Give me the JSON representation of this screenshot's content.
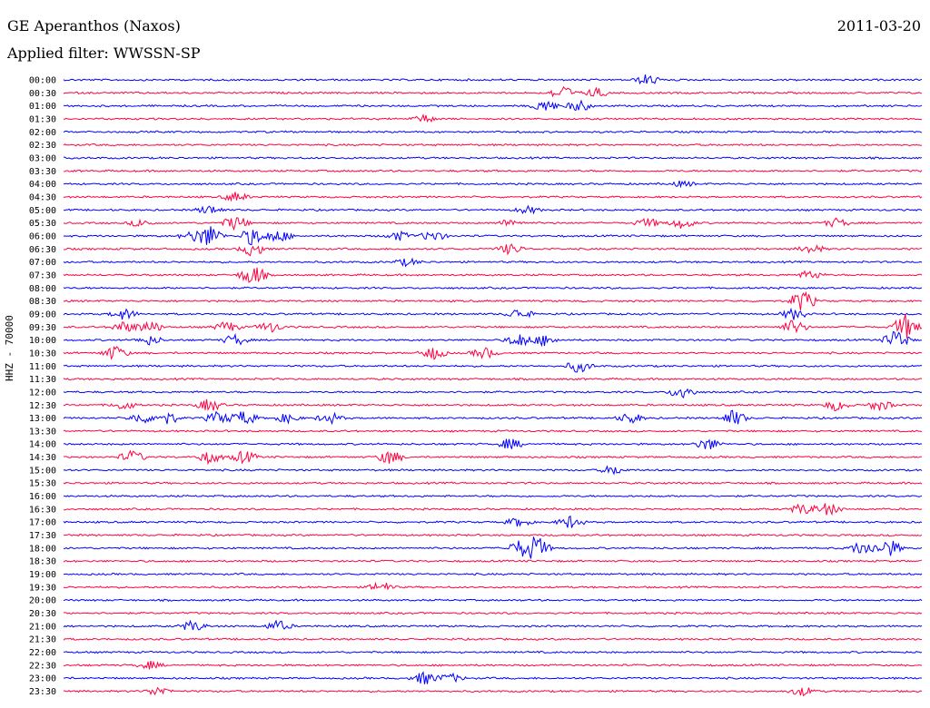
{
  "header": {
    "station": "GE Aperanthos (Naxos)",
    "filter": "Applied filter: WWSSN-SP",
    "date": "2011-03-20"
  },
  "channel_label": "HHZ - 70000",
  "colors": {
    "even": "#0000ff",
    "odd": "#ff0040"
  },
  "chart_data": {
    "type": "line",
    "title": "GE Aperanthos (Naxos)",
    "subtitle": "Applied filter: WWSSN-SP",
    "ylabel": "HHZ - 70000",
    "rows": [
      "00:00",
      "00:30",
      "01:00",
      "01:30",
      "02:00",
      "02:30",
      "03:00",
      "03:30",
      "04:00",
      "04:30",
      "05:00",
      "05:30",
      "06:00",
      "06:30",
      "07:00",
      "07:30",
      "08:00",
      "08:30",
      "09:00",
      "09:30",
      "10:00",
      "10:30",
      "11:00",
      "11:30",
      "12:00",
      "12:30",
      "13:00",
      "13:30",
      "14:00",
      "14:30",
      "15:00",
      "15:30",
      "16:00",
      "16:30",
      "17:00",
      "17:30",
      "18:00",
      "18:30",
      "19:00",
      "19:30",
      "20:00",
      "20:30",
      "21:00",
      "21:30",
      "22:00",
      "22:30",
      "23:00",
      "23:30"
    ],
    "events": [
      {
        "row": 0,
        "t": 0.68,
        "amp": 6
      },
      {
        "row": 1,
        "t": 0.58,
        "amp": 8
      },
      {
        "row": 1,
        "t": 0.62,
        "amp": 5
      },
      {
        "row": 2,
        "t": 0.56,
        "amp": 7
      },
      {
        "row": 2,
        "t": 0.6,
        "amp": 6
      },
      {
        "row": 3,
        "t": 0.42,
        "amp": 4
      },
      {
        "row": 8,
        "t": 0.72,
        "amp": 3
      },
      {
        "row": 9,
        "t": 0.2,
        "amp": 5
      },
      {
        "row": 10,
        "t": 0.17,
        "amp": 5
      },
      {
        "row": 10,
        "t": 0.54,
        "amp": 4
      },
      {
        "row": 11,
        "t": 0.09,
        "amp": 4
      },
      {
        "row": 11,
        "t": 0.2,
        "amp": 8
      },
      {
        "row": 11,
        "t": 0.52,
        "amp": 4
      },
      {
        "row": 11,
        "t": 0.68,
        "amp": 5
      },
      {
        "row": 11,
        "t": 0.72,
        "amp": 6
      },
      {
        "row": 11,
        "t": 0.9,
        "amp": 5
      },
      {
        "row": 12,
        "t": 0.15,
        "amp": 5
      },
      {
        "row": 12,
        "t": 0.17,
        "amp": 12
      },
      {
        "row": 12,
        "t": 0.22,
        "amp": 10
      },
      {
        "row": 12,
        "t": 0.25,
        "amp": 7
      },
      {
        "row": 12,
        "t": 0.39,
        "amp": 5
      },
      {
        "row": 12,
        "t": 0.43,
        "amp": 6
      },
      {
        "row": 13,
        "t": 0.22,
        "amp": 8
      },
      {
        "row": 13,
        "t": 0.52,
        "amp": 6
      },
      {
        "row": 13,
        "t": 0.87,
        "amp": 5
      },
      {
        "row": 14,
        "t": 0.4,
        "amp": 4
      },
      {
        "row": 15,
        "t": 0.22,
        "amp": 12
      },
      {
        "row": 15,
        "t": 0.87,
        "amp": 5
      },
      {
        "row": 17,
        "t": 0.86,
        "amp": 12
      },
      {
        "row": 18,
        "t": 0.07,
        "amp": 6
      },
      {
        "row": 18,
        "t": 0.53,
        "amp": 6
      },
      {
        "row": 18,
        "t": 0.85,
        "amp": 6
      },
      {
        "row": 19,
        "t": 0.07,
        "amp": 6
      },
      {
        "row": 19,
        "t": 0.1,
        "amp": 7
      },
      {
        "row": 19,
        "t": 0.19,
        "amp": 6
      },
      {
        "row": 19,
        "t": 0.24,
        "amp": 6
      },
      {
        "row": 19,
        "t": 0.85,
        "amp": 8
      },
      {
        "row": 19,
        "t": 0.98,
        "amp": 14
      },
      {
        "row": 20,
        "t": 0.1,
        "amp": 5
      },
      {
        "row": 20,
        "t": 0.2,
        "amp": 6
      },
      {
        "row": 20,
        "t": 0.53,
        "amp": 8
      },
      {
        "row": 20,
        "t": 0.56,
        "amp": 6
      },
      {
        "row": 20,
        "t": 0.97,
        "amp": 12
      },
      {
        "row": 21,
        "t": 0.06,
        "amp": 8
      },
      {
        "row": 21,
        "t": 0.43,
        "amp": 7
      },
      {
        "row": 21,
        "t": 0.49,
        "amp": 6
      },
      {
        "row": 22,
        "t": 0.6,
        "amp": 7
      },
      {
        "row": 24,
        "t": 0.72,
        "amp": 8
      },
      {
        "row": 25,
        "t": 0.07,
        "amp": 5
      },
      {
        "row": 25,
        "t": 0.17,
        "amp": 7
      },
      {
        "row": 25,
        "t": 0.9,
        "amp": 6
      },
      {
        "row": 25,
        "t": 0.95,
        "amp": 6
      },
      {
        "row": 26,
        "t": 0.09,
        "amp": 6
      },
      {
        "row": 26,
        "t": 0.12,
        "amp": 7
      },
      {
        "row": 26,
        "t": 0.18,
        "amp": 7
      },
      {
        "row": 26,
        "t": 0.21,
        "amp": 8
      },
      {
        "row": 26,
        "t": 0.26,
        "amp": 5
      },
      {
        "row": 26,
        "t": 0.31,
        "amp": 6
      },
      {
        "row": 26,
        "t": 0.66,
        "amp": 6
      },
      {
        "row": 26,
        "t": 0.78,
        "amp": 9
      },
      {
        "row": 28,
        "t": 0.52,
        "amp": 6
      },
      {
        "row": 28,
        "t": 0.75,
        "amp": 7
      },
      {
        "row": 29,
        "t": 0.08,
        "amp": 7
      },
      {
        "row": 29,
        "t": 0.17,
        "amp": 7
      },
      {
        "row": 29,
        "t": 0.21,
        "amp": 7
      },
      {
        "row": 29,
        "t": 0.38,
        "amp": 8
      },
      {
        "row": 30,
        "t": 0.64,
        "amp": 5
      },
      {
        "row": 33,
        "t": 0.86,
        "amp": 6
      },
      {
        "row": 33,
        "t": 0.89,
        "amp": 7
      },
      {
        "row": 34,
        "t": 0.53,
        "amp": 5
      },
      {
        "row": 34,
        "t": 0.59,
        "amp": 7
      },
      {
        "row": 36,
        "t": 0.53,
        "amp": 8
      },
      {
        "row": 36,
        "t": 0.55,
        "amp": 14
      },
      {
        "row": 36,
        "t": 0.93,
        "amp": 8
      },
      {
        "row": 36,
        "t": 0.96,
        "amp": 10
      },
      {
        "row": 39,
        "t": 0.37,
        "amp": 6
      },
      {
        "row": 42,
        "t": 0.15,
        "amp": 6
      },
      {
        "row": 42,
        "t": 0.25,
        "amp": 6
      },
      {
        "row": 45,
        "t": 0.1,
        "amp": 4
      },
      {
        "row": 46,
        "t": 0.42,
        "amp": 7
      },
      {
        "row": 46,
        "t": 0.45,
        "amp": 5
      },
      {
        "row": 47,
        "t": 0.11,
        "amp": 5
      },
      {
        "row": 47,
        "t": 0.86,
        "amp": 5
      }
    ]
  }
}
